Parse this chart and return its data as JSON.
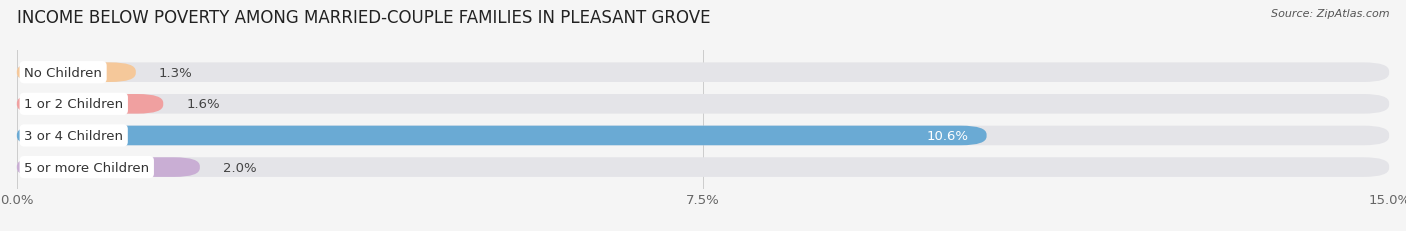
{
  "title": "INCOME BELOW POVERTY AMONG MARRIED-COUPLE FAMILIES IN PLEASANT GROVE",
  "source": "Source: ZipAtlas.com",
  "categories": [
    "No Children",
    "1 or 2 Children",
    "3 or 4 Children",
    "5 or more Children"
  ],
  "values": [
    1.3,
    1.6,
    10.6,
    2.0
  ],
  "bar_colors": [
    "#f5c89a",
    "#f0a0a0",
    "#6aaad4",
    "#c9aed4"
  ],
  "bg_bar_color": "#e4e4e8",
  "xlim": [
    0,
    15.0
  ],
  "xticks": [
    0.0,
    7.5,
    15.0
  ],
  "xtick_labels": [
    "0.0%",
    "7.5%",
    "15.0%"
  ],
  "title_fontsize": 12,
  "label_fontsize": 9.5,
  "value_fontsize": 9.5,
  "bar_height": 0.62,
  "background_color": "#f5f5f5"
}
